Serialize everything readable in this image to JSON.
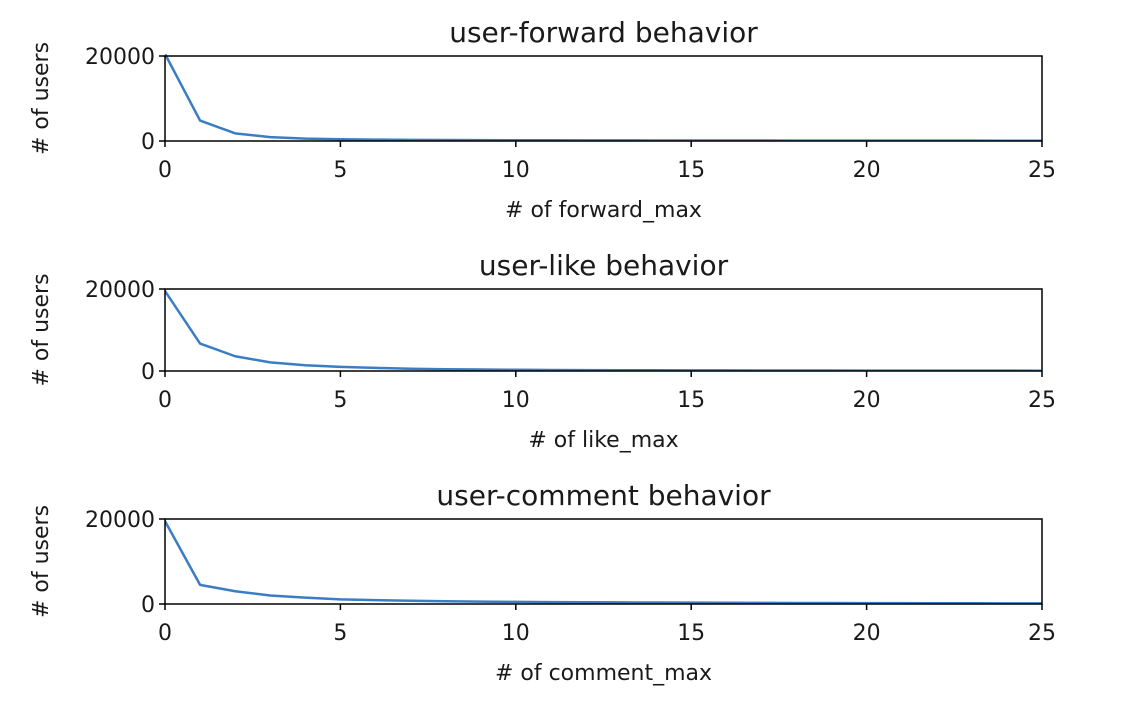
{
  "chart_data": [
    {
      "type": "line",
      "title": "user-forward behavior",
      "xlabel": "# of forward_max",
      "ylabel": "# of users",
      "xlim": [
        0,
        25
      ],
      "ylim": [
        0,
        20000
      ],
      "xticks": [
        0,
        5,
        10,
        15,
        20,
        25
      ],
      "yticks": [
        0,
        20000
      ],
      "grid": false,
      "color": "#3b7dc4",
      "x": [
        0,
        1,
        2,
        3,
        4,
        5,
        6,
        7,
        8,
        9,
        10,
        11,
        12,
        13,
        14,
        15,
        16,
        17,
        18,
        19,
        20,
        21,
        22,
        23,
        24,
        25
      ],
      "y": [
        20500,
        4800,
        1800,
        900,
        550,
        400,
        320,
        270,
        230,
        200,
        180,
        165,
        150,
        140,
        130,
        120,
        110,
        105,
        100,
        95,
        90,
        85,
        80,
        75,
        70,
        65
      ]
    },
    {
      "type": "line",
      "title": "user-like behavior",
      "xlabel": "# of like_max",
      "ylabel": "# of users",
      "xlim": [
        0,
        25
      ],
      "ylim": [
        0,
        20000
      ],
      "xticks": [
        0,
        5,
        10,
        15,
        20,
        25
      ],
      "yticks": [
        0,
        20000
      ],
      "grid": false,
      "color": "#3b7dc4",
      "x": [
        0,
        1,
        2,
        3,
        4,
        5,
        6,
        7,
        8,
        9,
        10,
        11,
        12,
        13,
        14,
        15,
        16,
        17,
        18,
        19,
        20,
        21,
        22,
        23,
        24,
        25
      ],
      "y": [
        19500,
        6700,
        3600,
        2100,
        1400,
        1000,
        750,
        550,
        430,
        350,
        290,
        250,
        220,
        195,
        175,
        160,
        145,
        135,
        125,
        115,
        105,
        98,
        90,
        85,
        80,
        75
      ]
    },
    {
      "type": "line",
      "title": "user-comment behavior",
      "xlabel": "# of comment_max",
      "ylabel": "# of users",
      "xlim": [
        0,
        25
      ],
      "ylim": [
        0,
        20000
      ],
      "xticks": [
        0,
        5,
        10,
        15,
        20,
        25
      ],
      "yticks": [
        0,
        20000
      ],
      "grid": false,
      "color": "#3b7dc4",
      "x": [
        0,
        1,
        2,
        3,
        4,
        5,
        6,
        7,
        8,
        9,
        10,
        11,
        12,
        13,
        14,
        15,
        16,
        17,
        18,
        19,
        20,
        21,
        22,
        23,
        24,
        25
      ],
      "y": [
        19500,
        4500,
        3000,
        2000,
        1500,
        1100,
        900,
        750,
        650,
        560,
        500,
        450,
        410,
        370,
        340,
        310,
        285,
        265,
        245,
        225,
        210,
        195,
        180,
        170,
        160,
        150
      ]
    }
  ]
}
